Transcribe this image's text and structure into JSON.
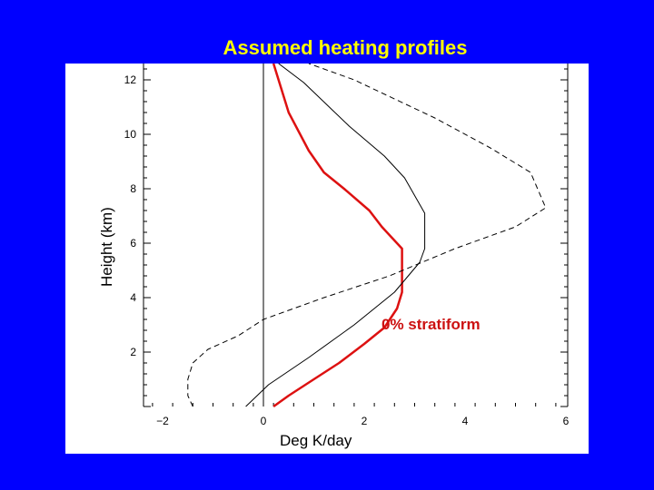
{
  "slide": {
    "title": "Assumed heating profiles"
  },
  "colors": {
    "background": "#0000ff",
    "title": "#ffff00",
    "panel": "#ffffff",
    "highlight_series": "#dd1111",
    "annotation": "#cc1111"
  },
  "chart_data": {
    "type": "line",
    "title": "Assumed heating profiles",
    "xlabel": "Deg K/day",
    "ylabel": "Height (km)",
    "xlim": [
      -2.2,
      6
    ],
    "ylim": [
      0,
      12.6
    ],
    "xticks": [
      -2,
      0,
      2,
      4,
      6
    ],
    "xtick_labels": [
      "-2",
      "0",
      "2",
      "4",
      "6"
    ],
    "yticks": [
      2,
      4,
      6,
      8,
      10,
      12
    ],
    "ytick_labels": [
      "2",
      "4",
      "6",
      "8",
      "10",
      "12"
    ],
    "grid": false,
    "zero_line": true,
    "annotation": "0% stratiform",
    "series": [
      {
        "style": "solid-thick-red",
        "points": [
          [
            0.2,
            0.0
          ],
          [
            0.5,
            0.4
          ],
          [
            1.0,
            1.0
          ],
          [
            1.5,
            1.6
          ],
          [
            2.0,
            2.3
          ],
          [
            2.4,
            2.9
          ],
          [
            2.65,
            3.6
          ],
          [
            2.75,
            4.2
          ],
          [
            2.75,
            5.2
          ],
          [
            2.75,
            5.8
          ],
          [
            2.35,
            6.6
          ],
          [
            2.1,
            7.2
          ],
          [
            1.6,
            8.0
          ],
          [
            1.2,
            8.6
          ],
          [
            0.9,
            9.4
          ],
          [
            0.5,
            10.8
          ],
          [
            0.2,
            12.6
          ]
        ]
      },
      {
        "style": "solid-thin-black",
        "points": [
          [
            -0.35,
            0.0
          ],
          [
            0.1,
            0.8
          ],
          [
            0.9,
            1.8
          ],
          [
            1.8,
            3.0
          ],
          [
            2.6,
            4.2
          ],
          [
            3.1,
            5.3
          ],
          [
            3.2,
            5.8
          ],
          [
            3.2,
            7.1
          ],
          [
            2.8,
            8.4
          ],
          [
            2.4,
            9.2
          ],
          [
            1.7,
            10.3
          ],
          [
            0.8,
            11.9
          ],
          [
            0.3,
            12.6
          ]
        ]
      },
      {
        "style": "dashed-black",
        "points": [
          [
            -1.4,
            0.0
          ],
          [
            -1.5,
            0.4
          ],
          [
            -1.5,
            1.0
          ],
          [
            -1.4,
            1.6
          ],
          [
            -1.1,
            2.1
          ],
          [
            -0.5,
            2.6
          ],
          [
            0.0,
            3.2
          ],
          [
            1.2,
            4.0
          ],
          [
            2.5,
            4.8
          ],
          [
            3.8,
            5.8
          ],
          [
            5.0,
            6.6
          ],
          [
            5.6,
            7.3
          ],
          [
            5.3,
            8.6
          ],
          [
            4.5,
            9.5
          ],
          [
            3.4,
            10.6
          ],
          [
            1.8,
            12.0
          ],
          [
            0.9,
            12.6
          ]
        ]
      }
    ]
  }
}
